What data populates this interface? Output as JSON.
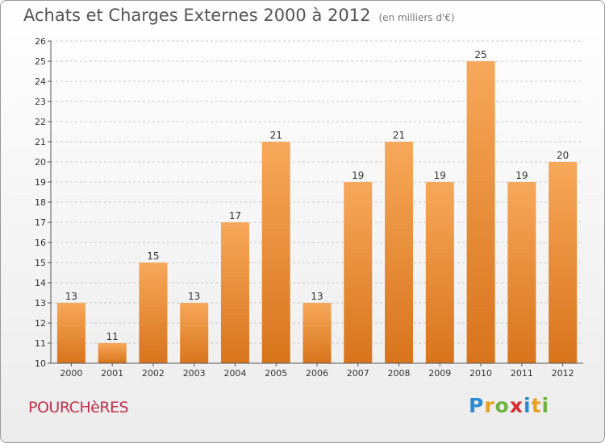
{
  "header": {
    "title": "Achats et Charges Externes 2000 à 2012",
    "subtitle": "(en milliers d'€)"
  },
  "footer": {
    "place": "POURCHèRES",
    "logo_letters": [
      "P",
      "r",
      "o",
      "x",
      "i",
      "t",
      "i"
    ],
    "logo_colors": [
      "#2a8bd0",
      "#e8a020",
      "#6db33f",
      "#d62c2c",
      "#2a8bd0",
      "#e8a020",
      "#6db33f"
    ]
  },
  "colors": {
    "bar_top": "#f7a85a",
    "bar_bottom": "#d8741c"
  },
  "chart_data": {
    "type": "bar",
    "title": "Achats et Charges Externes 2000 à 2012",
    "subtitle": "(en milliers d'€)",
    "categories": [
      "2000",
      "2001",
      "2002",
      "2003",
      "2004",
      "2005",
      "2006",
      "2007",
      "2008",
      "2009",
      "2010",
      "2011",
      "2012"
    ],
    "values": [
      13,
      11,
      15,
      13,
      17,
      21,
      13,
      19,
      21,
      19,
      25,
      19,
      20
    ],
    "ylim": [
      10,
      26
    ],
    "yticks": [
      10,
      11,
      12,
      13,
      14,
      15,
      16,
      17,
      18,
      19,
      20,
      21,
      22,
      23,
      24,
      25,
      26
    ],
    "grid": "horizontal-dashed",
    "xlabel": "",
    "ylabel": ""
  }
}
